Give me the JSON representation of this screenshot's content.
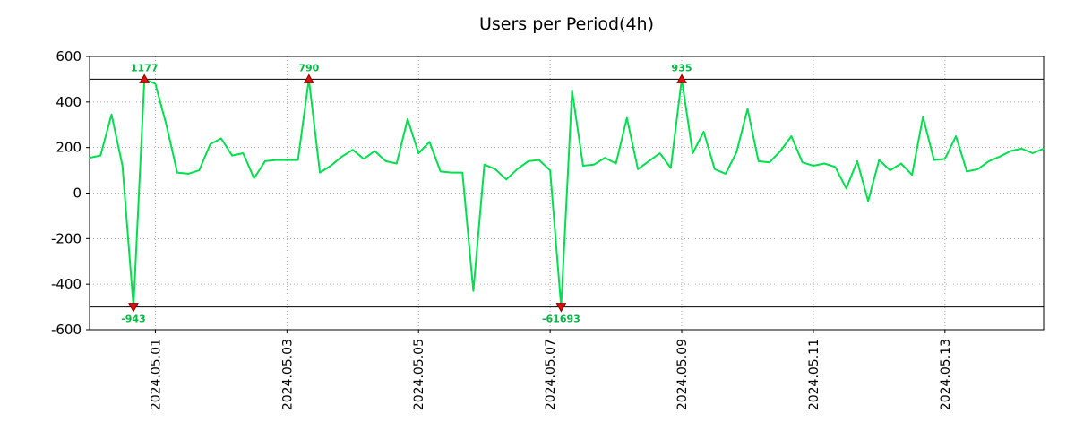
{
  "chart_data": {
    "type": "line",
    "title": "Users per Period(4h)",
    "series_name": "users",
    "start_time": "2024-04-30 00:00",
    "interval_hours": 4,
    "ylim": [
      -600,
      600
    ],
    "grid": true,
    "legend": false,
    "clip_value": 500,
    "y_ticks": [
      600,
      400,
      200,
      0,
      -200,
      -400,
      -600
    ],
    "x_ticks": [
      {
        "index": 6,
        "label": "2024.05.01"
      },
      {
        "index": 18,
        "label": "2024.05.03"
      },
      {
        "index": 30,
        "label": "2024.05.05"
      },
      {
        "index": 42,
        "label": "2024.05.07"
      },
      {
        "index": 54,
        "label": "2024.05.09"
      },
      {
        "index": 66,
        "label": "2024.05.11"
      },
      {
        "index": 78,
        "label": "2024.05.13"
      }
    ],
    "values": [
      155,
      165,
      345,
      120,
      -943,
      1177,
      480,
      300,
      90,
      85,
      100,
      215,
      240,
      165,
      175,
      65,
      140,
      145,
      145,
      145,
      790,
      90,
      120,
      160,
      190,
      150,
      185,
      140,
      130,
      325,
      175,
      225,
      95,
      90,
      90,
      -430,
      125,
      105,
      60,
      105,
      140,
      145,
      100,
      -61693,
      450,
      120,
      125,
      155,
      130,
      330,
      105,
      140,
      175,
      110,
      935,
      175,
      270,
      105,
      85,
      180,
      370,
      140,
      135,
      185,
      250,
      135,
      120,
      130,
      115,
      20,
      140,
      -35,
      145,
      100,
      130,
      80,
      335,
      145,
      150,
      250,
      95,
      105,
      140,
      160,
      185,
      195,
      175,
      195
    ],
    "annotations": [
      {
        "index": 4,
        "value": -943,
        "label": "-943"
      },
      {
        "index": 5,
        "value": 1177,
        "label": "1177"
      },
      {
        "index": 20,
        "value": 790,
        "label": "790"
      },
      {
        "index": 43,
        "value": -61693,
        "label": "-61693"
      },
      {
        "index": 54,
        "value": 935,
        "label": "935"
      }
    ],
    "colors": {
      "line": "#00e04e",
      "marker": "#dd1111",
      "marker_edge": "#8b0000",
      "annotation": "#00b843",
      "grid": "#aaaaaa",
      "axis": "#000000"
    }
  }
}
